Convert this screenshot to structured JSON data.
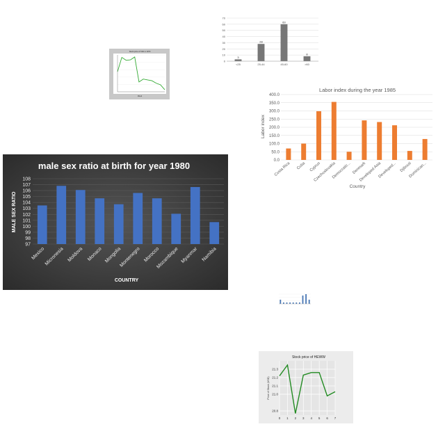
{
  "chart_data": [
    {
      "id": "age-groups",
      "type": "bar",
      "title": "",
      "categories": [
        "<25",
        "25-44",
        "45-60",
        ">60"
      ],
      "values": [
        3,
        28,
        60,
        8
      ],
      "data_labels": [
        "3",
        "28",
        "60",
        "8"
      ],
      "ylim": [
        0,
        70
      ],
      "yticks": [
        "0",
        "10",
        "20",
        "30",
        "40",
        "50",
        "60",
        "70"
      ],
      "bar_color": "#777777",
      "grid": true
    },
    {
      "id": "stock-small",
      "type": "line",
      "title": "Stock price of TAD in 1970",
      "xlabel": "Week",
      "ylabel": "",
      "values": [
        26.0,
        29.5,
        28.8,
        28.9,
        29.6,
        23.5,
        24.2,
        24.0,
        23.8,
        23.2,
        22.8,
        21.6
      ],
      "line_color": "#33aa33",
      "grid": true
    },
    {
      "id": "labor-index",
      "type": "bar",
      "title": "Labor index during the year 1985",
      "xlabel": "Country",
      "ylabel": "Labor index",
      "categories": [
        "Costa Rica",
        "Cuba",
        "Cyprus",
        "Czechoslovakia",
        "Democratic...",
        "Denmark",
        "Developed Asia",
        "Developed...",
        "Djibouti",
        "Dominican..."
      ],
      "values": [
        70,
        100,
        298,
        355,
        50,
        242,
        232,
        212,
        55,
        128
      ],
      "ylim": [
        0,
        400
      ],
      "yticks": [
        "0.0",
        "50.0",
        "100.0",
        "150.0",
        "200.0",
        "250.0",
        "300.0",
        "350.0",
        "400.0"
      ],
      "bar_color": "#ed7d31",
      "grid": true
    },
    {
      "id": "male-sex-ratio",
      "type": "bar",
      "title": "male sex ratio at birth for year 1980",
      "xlabel": "COUNTRY",
      "ylabel": "MALE SEX RATIO",
      "categories": [
        "Mexico",
        "Micronesia",
        "Moldova",
        "Monaco",
        "Mongolia",
        "Montenegro",
        "Morocco",
        "Mozambique",
        "Myanmar",
        "Namibia"
      ],
      "values": [
        103.5,
        106.8,
        106.1,
        104.7,
        103.7,
        105.6,
        104.7,
        102.1,
        106.6,
        100.7
      ],
      "ylim": [
        97,
        108
      ],
      "yticks": [
        "97",
        "98",
        "99",
        "100",
        "101",
        "102",
        "103",
        "104",
        "105",
        "106",
        "107",
        "108"
      ],
      "bar_color": "#4472c4",
      "grid": true
    },
    {
      "id": "tiny-bars",
      "type": "bar",
      "title": "",
      "values": [
        3,
        1,
        1,
        1,
        1,
        1,
        1,
        6,
        7,
        3
      ],
      "bar_color": "#4a78b5"
    },
    {
      "id": "stock-heww",
      "type": "line",
      "title": "Stock price of HEWW",
      "xlabel": "",
      "ylabel": "Price of Stock (USD)",
      "x": [
        0,
        1,
        2,
        3,
        4,
        5,
        6,
        7
      ],
      "values": [
        21.22,
        21.35,
        20.77,
        21.23,
        21.26,
        21.26,
        20.98,
        21.03
      ],
      "ylim": [
        20.75,
        21.4
      ],
      "yticks": [
        "20.8",
        "21.0",
        "21.1",
        "21.2",
        "21.3"
      ],
      "ytick_values": [
        20.8,
        21.0,
        21.1,
        21.2,
        21.3
      ],
      "xticks": [
        "0",
        "1",
        "2",
        "3",
        "4",
        "5",
        "6",
        "7"
      ],
      "line_color": "#228b22",
      "grid": true
    }
  ]
}
